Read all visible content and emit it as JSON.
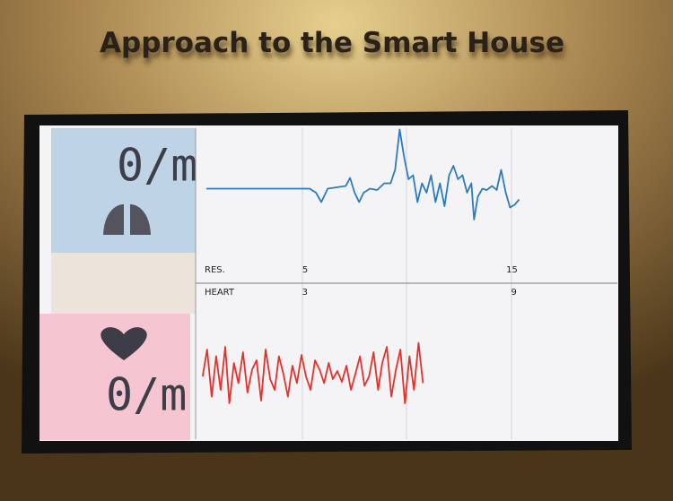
{
  "sign": {
    "title": "Approach to the Smart House"
  },
  "respiration": {
    "rate": "0/m"
  },
  "heart": {
    "rate": "0/m"
  },
  "chart_data": [
    {
      "type": "line",
      "label": "RES.",
      "color": "#2a7bc0",
      "xlim": [
        -0.3,
        20.1
      ],
      "xticks": [
        5,
        15
      ],
      "ylim": [
        0,
        100
      ],
      "x": [
        0.22,
        5.22,
        5.52,
        5.78,
        6.09,
        6.96,
        7.17,
        7.39,
        7.61,
        7.83,
        8.13,
        8.48,
        8.83,
        9.13,
        9.35,
        9.57,
        9.78,
        10.0,
        10.22,
        10.43,
        10.65,
        10.87,
        11.09,
        11.3,
        11.52,
        11.74,
        11.96,
        12.17,
        12.39,
        12.61,
        12.83,
        13.04,
        13.17,
        13.35,
        13.57,
        13.78,
        14.04,
        14.26,
        14.48,
        14.7,
        14.91,
        15.13,
        15.35
      ],
      "values": [
        53,
        53,
        50,
        43,
        53,
        55,
        61,
        50,
        43,
        50,
        53,
        52,
        57,
        57,
        67,
        97,
        77,
        60,
        63,
        43,
        57,
        50,
        63,
        43,
        57,
        40,
        63,
        70,
        60,
        63,
        50,
        57,
        30,
        47,
        53,
        52,
        55,
        52,
        67,
        50,
        39,
        41,
        45
      ]
    },
    {
      "type": "line",
      "label": "HEART",
      "color": "#e8302a",
      "xlim": [
        -0.14,
        11.97
      ],
      "xticks": [
        3,
        9
      ],
      "ylim": [
        0,
        100
      ],
      "x": [
        0.06,
        0.19,
        0.32,
        0.45,
        0.58,
        0.71,
        0.83,
        0.96,
        1.09,
        1.22,
        1.35,
        1.48,
        1.61,
        1.74,
        1.87,
        2.0,
        2.13,
        2.25,
        2.38,
        2.51,
        2.64,
        2.77,
        2.9,
        3.03,
        3.16,
        3.29,
        3.42,
        3.55,
        3.68,
        3.8,
        3.93,
        4.06,
        4.19,
        4.32,
        4.45,
        4.58,
        4.71,
        4.84,
        4.97,
        5.1,
        5.22,
        5.35,
        5.48,
        5.61,
        5.74,
        5.87,
        6.0,
        6.13,
        6.26,
        6.39
      ],
      "values": [
        40,
        60,
        25,
        55,
        30,
        62,
        20,
        50,
        35,
        58,
        28,
        45,
        52,
        22,
        60,
        38,
        30,
        55,
        42,
        25,
        48,
        35,
        56,
        40,
        30,
        52,
        45,
        35,
        50,
        38,
        44,
        36,
        48,
        30,
        42,
        55,
        33,
        40,
        58,
        30,
        50,
        62,
        25,
        45,
        60,
        20,
        55,
        30,
        65,
        35
      ]
    }
  ]
}
